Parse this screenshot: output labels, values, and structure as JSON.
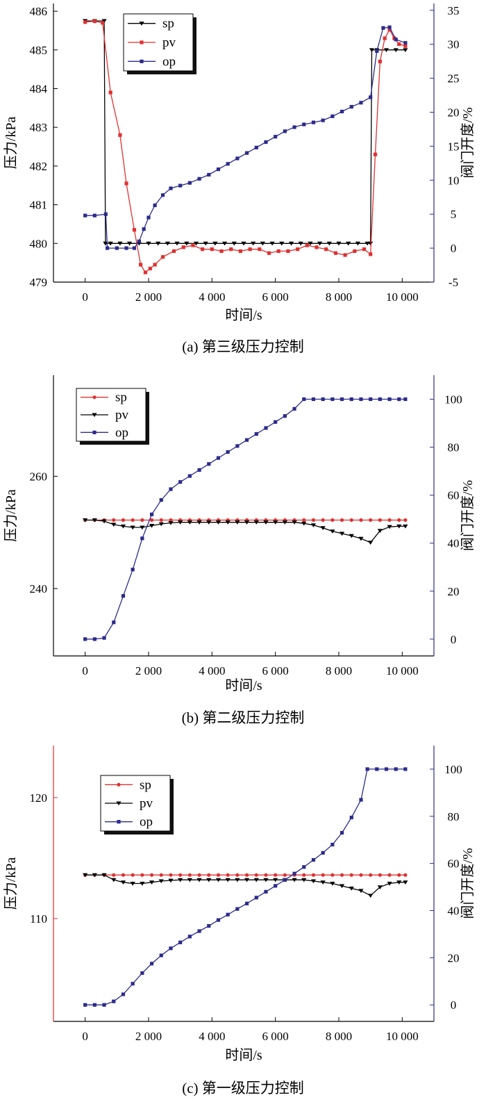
{
  "figure": {
    "panels": [
      {
        "id": "a",
        "caption": "(a) 第三级压力控制",
        "xlabel": "时间/s",
        "ylabel_left": "压力/kPa",
        "ylabel_right": "阀门开度/%",
        "xlim": [
          -1000,
          11000
        ],
        "ylim_left": [
          479.0,
          486.2
        ],
        "ylim_right": [
          -5,
          36
        ],
        "xticks": [
          0,
          2000,
          4000,
          6000,
          8000,
          10000
        ],
        "xtick_labels": [
          "0",
          "2 000",
          "4 000",
          "6 000",
          "8 000",
          "10 000"
        ],
        "yticks_left": [
          479,
          480,
          481,
          482,
          483,
          484,
          485,
          486
        ],
        "ytick_labels_left": [
          "479",
          "480",
          "481",
          "482",
          "483",
          "484",
          "485",
          "486"
        ],
        "yticks_right": [
          -5,
          0,
          5,
          10,
          15,
          20,
          25,
          30,
          35
        ],
        "ytick_labels_right": [
          "-5",
          "0",
          "5",
          "10",
          "15",
          "20",
          "25",
          "30",
          "35"
        ],
        "left_axis_color": "#000000",
        "right_axis_color": "#2b2b8c",
        "legend_order": [
          "sp",
          "pv",
          "op"
        ]
      },
      {
        "id": "b",
        "caption": "(b) 第二级压力控制",
        "xlabel": "时间/s",
        "ylabel_left": "压力/kPa",
        "ylabel_right": "阀门开度/%",
        "xlim": [
          -1000,
          11000
        ],
        "ylim_left": [
          228,
          278
        ],
        "ylim_right": [
          -7,
          110
        ],
        "xticks": [
          0,
          2000,
          4000,
          6000,
          8000,
          10000
        ],
        "xtick_labels": [
          "0",
          "2 000",
          "4 000",
          "6 000",
          "8 000",
          "10 000"
        ],
        "yticks_left": [
          240,
          260
        ],
        "ytick_labels_left": [
          "240",
          "260"
        ],
        "yticks_right": [
          0,
          20,
          40,
          60,
          80,
          100
        ],
        "ytick_labels_right": [
          "0",
          "20",
          "40",
          "60",
          "80",
          "100"
        ],
        "left_axis_color": "#000000",
        "right_axis_color": "#2b2b8c",
        "legend_order": [
          "sp",
          "pv",
          "op"
        ]
      },
      {
        "id": "c",
        "caption": "(c) 第一级压力控制",
        "xlabel": "时间/s",
        "ylabel_left": "压力/kPa",
        "ylabel_right": "阀门开度/%",
        "xlim": [
          -1000,
          11000
        ],
        "ylim_left": [
          101.5,
          124.3
        ],
        "ylim_right": [
          -7,
          110
        ],
        "xticks": [
          0,
          2000,
          4000,
          6000,
          8000,
          10000
        ],
        "xtick_labels": [
          "0",
          "2 000",
          "4 000",
          "6 000",
          "8 000",
          "10 000"
        ],
        "yticks_left": [
          110,
          120
        ],
        "ytick_labels_left": [
          "110",
          "120"
        ],
        "yticks_right": [
          0,
          20,
          40,
          60,
          80,
          100
        ],
        "ytick_labels_right": [
          "0",
          "20",
          "40",
          "60",
          "80",
          "100"
        ],
        "left_axis_color": "#e03030",
        "right_axis_color": "#2b2b8c",
        "legend_order": [
          "sp",
          "pv",
          "op"
        ]
      }
    ]
  },
  "chart_data": [
    {
      "type": "line",
      "caption": "(a) 第三级压力控制",
      "xlabel": "时间/s",
      "ylabel": "压力/kPa",
      "y2label": "阀门开度/%",
      "xlim": [
        -1000,
        11000
      ],
      "ylim": [
        479.0,
        486.2
      ],
      "y2lim": [
        -5,
        36
      ],
      "grid": false,
      "legend_position": "top-left",
      "series": [
        {
          "name": "sp",
          "axis": "left",
          "color": "#000000",
          "marker": "triangle-down",
          "x": [
            0,
            300,
            600,
            640,
            800,
            1100,
            1400,
            1700,
            2000,
            2300,
            2600,
            2900,
            3200,
            3500,
            3800,
            4100,
            4400,
            4700,
            5000,
            5300,
            5600,
            5900,
            6200,
            6500,
            6800,
            7100,
            7400,
            7700,
            8000,
            8300,
            8600,
            8900,
            9000,
            9040,
            9200,
            9500,
            9800,
            10100
          ],
          "y": [
            485.75,
            485.75,
            485.75,
            480.0,
            480.0,
            480.0,
            480.0,
            480.0,
            480.0,
            480.0,
            480.0,
            480.0,
            480.0,
            480.0,
            480.0,
            480.0,
            480.0,
            480.0,
            480.0,
            480.0,
            480.0,
            480.0,
            480.0,
            480.0,
            480.0,
            480.0,
            480.0,
            480.0,
            480.0,
            480.0,
            480.0,
            480.0,
            480.0,
            485.0,
            485.0,
            485.0,
            485.0,
            485.0
          ]
        },
        {
          "name": "pv",
          "axis": "left",
          "color": "#e03030",
          "marker": "square",
          "x": [
            0,
            300,
            550,
            800,
            1100,
            1300,
            1550,
            1750,
            1900,
            2050,
            2200,
            2450,
            2800,
            3100,
            3400,
            3700,
            4000,
            4300,
            4600,
            4900,
            5200,
            5500,
            5800,
            6100,
            6400,
            6700,
            7000,
            7300,
            7600,
            7900,
            8200,
            8500,
            8800,
            9000,
            9150,
            9300,
            9450,
            9600,
            9750,
            9900,
            10100
          ],
          "y": [
            485.72,
            485.74,
            485.7,
            483.9,
            482.8,
            481.55,
            480.35,
            479.45,
            479.25,
            479.35,
            479.45,
            479.65,
            479.8,
            479.9,
            479.95,
            479.85,
            479.85,
            479.8,
            479.85,
            479.8,
            479.85,
            479.85,
            479.75,
            479.8,
            479.8,
            479.85,
            479.95,
            479.9,
            479.85,
            479.75,
            479.7,
            479.8,
            479.85,
            479.72,
            482.3,
            484.7,
            485.3,
            485.52,
            485.3,
            485.15,
            485.1
          ]
        },
        {
          "name": "op",
          "axis": "right",
          "color": "#2b2b8c",
          "marker": "square",
          "x": [
            0,
            300,
            650,
            700,
            1000,
            1300,
            1550,
            1700,
            1850,
            2000,
            2200,
            2450,
            2700,
            3000,
            3300,
            3600,
            3900,
            4200,
            4500,
            4800,
            5100,
            5400,
            5700,
            6000,
            6300,
            6600,
            6900,
            7200,
            7500,
            7800,
            8100,
            8400,
            8700,
            9000,
            9200,
            9400,
            9600,
            9800,
            10100
          ],
          "y": [
            4.8,
            4.8,
            5.0,
            0.0,
            0.0,
            0.0,
            0.0,
            1.0,
            2.8,
            4.5,
            6.3,
            7.8,
            8.8,
            9.2,
            9.6,
            10.2,
            10.8,
            11.6,
            12.4,
            13.2,
            14.0,
            14.8,
            15.6,
            16.4,
            17.2,
            17.8,
            18.2,
            18.5,
            18.8,
            19.4,
            20.1,
            20.8,
            21.4,
            22.2,
            29.0,
            32.4,
            32.5,
            30.7,
            30.2
          ]
        }
      ]
    },
    {
      "type": "line",
      "caption": "(b) 第二级压力控制",
      "xlabel": "时间/s",
      "ylabel": "压力/kPa",
      "y2label": "阀门开度/%",
      "xlim": [
        -1000,
        11000
      ],
      "ylim": [
        228,
        278
      ],
      "y2lim": [
        -7,
        110
      ],
      "grid": false,
      "legend_position": "top-left",
      "series": [
        {
          "name": "sp",
          "axis": "left",
          "color": "#e03030",
          "marker": "circle",
          "x": [
            0,
            300,
            600,
            900,
            1200,
            1500,
            1800,
            2100,
            2400,
            2700,
            3000,
            3300,
            3600,
            3900,
            4200,
            4500,
            4800,
            5100,
            5400,
            5700,
            6000,
            6300,
            6600,
            6900,
            7200,
            7500,
            7800,
            8100,
            8400,
            8700,
            9000,
            9300,
            9600,
            9900,
            10100
          ],
          "y": [
            252.2,
            252.2,
            252.2,
            252.2,
            252.2,
            252.2,
            252.2,
            252.2,
            252.2,
            252.2,
            252.2,
            252.2,
            252.2,
            252.2,
            252.2,
            252.2,
            252.2,
            252.2,
            252.2,
            252.2,
            252.2,
            252.2,
            252.2,
            252.2,
            252.2,
            252.2,
            252.2,
            252.2,
            252.2,
            252.2,
            252.2,
            252.2,
            252.2,
            252.2,
            252.2
          ]
        },
        {
          "name": "pv",
          "axis": "left",
          "color": "#000000",
          "marker": "triangle-down",
          "x": [
            0,
            300,
            600,
            900,
            1200,
            1500,
            1800,
            2100,
            2400,
            2700,
            3000,
            3300,
            3600,
            3900,
            4200,
            4500,
            4800,
            5100,
            5400,
            5700,
            6000,
            6300,
            6600,
            6900,
            7200,
            7500,
            7800,
            8100,
            8400,
            8700,
            9000,
            9300,
            9600,
            9900,
            10100
          ],
          "y": [
            252.2,
            252.2,
            252.0,
            251.4,
            251.1,
            250.9,
            250.9,
            251.2,
            251.5,
            251.7,
            251.8,
            251.8,
            251.8,
            251.8,
            251.8,
            251.8,
            251.8,
            251.8,
            251.8,
            251.8,
            251.8,
            251.8,
            251.8,
            251.6,
            251.3,
            250.8,
            250.2,
            249.8,
            249.4,
            248.9,
            248.2,
            250.3,
            251.0,
            251.1,
            251.1
          ]
        },
        {
          "name": "op",
          "axis": "right",
          "color": "#2b2b8c",
          "marker": "square",
          "x": [
            0,
            300,
            600,
            900,
            1200,
            1500,
            1800,
            2100,
            2400,
            2700,
            3000,
            3300,
            3600,
            3900,
            4200,
            4500,
            4800,
            5100,
            5400,
            5700,
            6000,
            6300,
            6600,
            6900,
            7200,
            7500,
            7800,
            8100,
            8400,
            8700,
            9000,
            9300,
            9600,
            9900,
            10100
          ],
          "y": [
            0,
            0,
            0.5,
            7,
            18,
            29,
            42,
            52,
            58,
            62.5,
            65.5,
            68,
            70.5,
            73,
            75.5,
            78,
            80.5,
            83,
            85.5,
            88,
            90.5,
            93,
            96,
            100,
            100,
            100,
            100,
            100,
            100,
            100,
            100,
            100,
            100,
            100,
            100
          ]
        }
      ]
    },
    {
      "type": "line",
      "caption": "(c) 第一级压力控制",
      "xlabel": "时间/s",
      "ylabel": "压力/kPa",
      "y2label": "阀门开度/%",
      "xlim": [
        -1000,
        11000
      ],
      "ylim": [
        101.5,
        124.3
      ],
      "y2lim": [
        -7,
        110
      ],
      "grid": false,
      "legend_position": "top-left",
      "series": [
        {
          "name": "sp",
          "axis": "left",
          "color": "#e03030",
          "marker": "circle",
          "x": [
            0,
            300,
            600,
            900,
            1200,
            1500,
            1800,
            2100,
            2400,
            2700,
            3000,
            3300,
            3600,
            3900,
            4200,
            4500,
            4800,
            5100,
            5400,
            5700,
            6000,
            6300,
            6600,
            6900,
            7200,
            7500,
            7800,
            8100,
            8400,
            8700,
            9000,
            9300,
            9600,
            9900,
            10100
          ],
          "y": [
            113.6,
            113.6,
            113.6,
            113.6,
            113.6,
            113.6,
            113.6,
            113.6,
            113.6,
            113.6,
            113.6,
            113.6,
            113.6,
            113.6,
            113.6,
            113.6,
            113.6,
            113.6,
            113.6,
            113.6,
            113.6,
            113.6,
            113.6,
            113.6,
            113.6,
            113.6,
            113.6,
            113.6,
            113.6,
            113.6,
            113.6,
            113.6,
            113.6,
            113.6,
            113.6
          ]
        },
        {
          "name": "pv",
          "axis": "left",
          "color": "#000000",
          "marker": "triangle-down",
          "x": [
            0,
            300,
            600,
            900,
            1200,
            1500,
            1800,
            2100,
            2400,
            2700,
            3000,
            3300,
            3600,
            3900,
            4200,
            4500,
            4800,
            5100,
            5400,
            5700,
            6000,
            6300,
            6600,
            6900,
            7200,
            7500,
            7800,
            8100,
            8400,
            8700,
            9000,
            9300,
            9600,
            9900,
            10100
          ],
          "y": [
            113.6,
            113.6,
            113.6,
            113.2,
            113.0,
            112.9,
            112.9,
            113.0,
            113.1,
            113.15,
            113.2,
            113.2,
            113.2,
            113.2,
            113.2,
            113.2,
            113.2,
            113.2,
            113.2,
            113.2,
            113.2,
            113.2,
            113.2,
            113.2,
            113.1,
            113.0,
            112.9,
            112.7,
            112.5,
            112.3,
            111.9,
            112.6,
            112.9,
            113.0,
            113.0
          ]
        },
        {
          "name": "op",
          "axis": "right",
          "color": "#2b2b8c",
          "marker": "square",
          "x": [
            0,
            300,
            600,
            900,
            1200,
            1500,
            1800,
            2100,
            2400,
            2700,
            3000,
            3300,
            3600,
            3900,
            4200,
            4500,
            4800,
            5100,
            5400,
            5700,
            6000,
            6300,
            6600,
            6900,
            7200,
            7500,
            7800,
            8100,
            8400,
            8700,
            8900,
            9200,
            9500,
            9800,
            10100
          ],
          "y": [
            0,
            0,
            0,
            1.5,
            4.5,
            9,
            13.5,
            17.5,
            21,
            24,
            26.5,
            29,
            31.3,
            33.5,
            36,
            38.3,
            40.7,
            43,
            45.5,
            48,
            50.5,
            53,
            55.7,
            58.5,
            61.5,
            64.5,
            68,
            73,
            79.5,
            87,
            100,
            100,
            100,
            100,
            100
          ]
        }
      ]
    }
  ]
}
